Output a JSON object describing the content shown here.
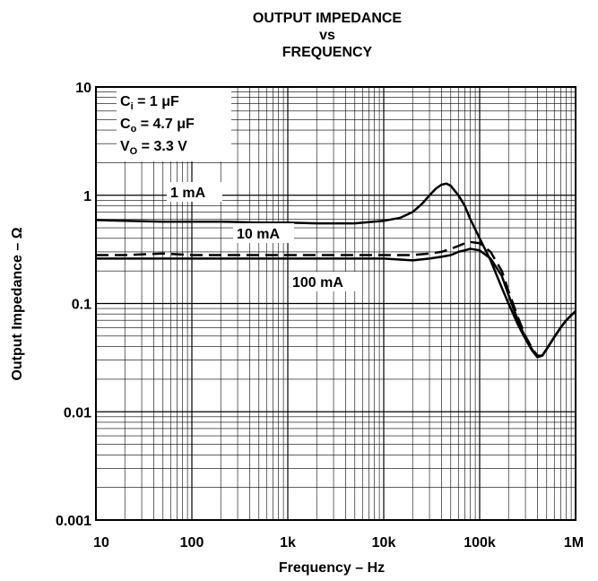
{
  "chart_data": {
    "type": "line",
    "title_lines": [
      "OUTPUT IMPEDANCE",
      "vs",
      "FREQUENCY"
    ],
    "xlabel": "Frequency – Hz",
    "ylabel": "Output Impedance – Ω",
    "x_scale": "log",
    "y_scale": "log",
    "xlim": [
      10,
      1000000
    ],
    "ylim": [
      0.001,
      10
    ],
    "x_ticks": [
      {
        "value": 10,
        "label": "10"
      },
      {
        "value": 100,
        "label": "100"
      },
      {
        "value": 1000,
        "label": "1k"
      },
      {
        "value": 10000,
        "label": "10k"
      },
      {
        "value": 100000,
        "label": "100k"
      },
      {
        "value": 1000000,
        "label": "1M"
      }
    ],
    "y_ticks": [
      {
        "value": 10,
        "label": "10"
      },
      {
        "value": 1,
        "label": "1"
      },
      {
        "value": 0.1,
        "label": "0.1"
      },
      {
        "value": 0.01,
        "label": "0.01"
      },
      {
        "value": 0.001,
        "label": "0.001"
      }
    ],
    "grid": true,
    "conditions": [
      {
        "main": "C",
        "sub": "i",
        "rest": " = 1 μF"
      },
      {
        "main": "C",
        "sub": "o",
        "rest": " = 4.7 μF"
      },
      {
        "main": "V",
        "sub": "O",
        "rest": " = 3.3 V"
      }
    ],
    "series": [
      {
        "name": "1 mA",
        "style": "solid",
        "x": [
          10,
          20,
          50,
          100,
          200,
          500,
          1000,
          2000,
          5000,
          10000,
          15000,
          20000,
          25000,
          30000,
          35000,
          40000,
          45000,
          50000,
          60000,
          70000,
          80000,
          100000,
          130000,
          170000,
          200000,
          250000,
          300000,
          350000,
          400000,
          450000,
          500000,
          600000,
          700000,
          800000,
          1000000
        ],
        "y": [
          0.59,
          0.58,
          0.57,
          0.57,
          0.57,
          0.56,
          0.56,
          0.55,
          0.55,
          0.58,
          0.62,
          0.7,
          0.83,
          1.0,
          1.15,
          1.25,
          1.28,
          1.22,
          1.0,
          0.8,
          0.6,
          0.4,
          0.25,
          0.14,
          0.1,
          0.064,
          0.047,
          0.037,
          0.032,
          0.033,
          0.038,
          0.049,
          0.06,
          0.07,
          0.085
        ]
      },
      {
        "name": "10 mA",
        "style": "dashed",
        "x": [
          10,
          20,
          50,
          100,
          200,
          500,
          1000,
          2000,
          5000,
          10000,
          20000,
          30000,
          40000,
          50000,
          60000,
          70000,
          80000,
          100000,
          130000,
          170000,
          200000,
          250000,
          300000,
          350000,
          400000,
          450000,
          500000,
          600000,
          700000,
          800000,
          1000000
        ],
        "y": [
          0.28,
          0.28,
          0.29,
          0.28,
          0.28,
          0.28,
          0.28,
          0.28,
          0.28,
          0.28,
          0.28,
          0.29,
          0.3,
          0.32,
          0.34,
          0.36,
          0.37,
          0.36,
          0.3,
          0.2,
          0.13,
          0.075,
          0.05,
          0.039,
          0.033,
          0.033,
          0.038,
          0.049,
          0.06,
          0.07,
          0.085
        ]
      },
      {
        "name": "100 mA",
        "style": "solid",
        "x": [
          10,
          20,
          50,
          100,
          200,
          500,
          1000,
          2000,
          5000,
          10000,
          20000,
          30000,
          40000,
          50000,
          60000,
          70000,
          80000,
          100000,
          130000,
          170000,
          200000,
          250000,
          300000,
          350000,
          400000,
          450000,
          500000,
          600000,
          700000,
          800000,
          1000000
        ],
        "y": [
          0.26,
          0.26,
          0.26,
          0.26,
          0.26,
          0.26,
          0.26,
          0.26,
          0.26,
          0.26,
          0.25,
          0.26,
          0.27,
          0.28,
          0.3,
          0.31,
          0.32,
          0.31,
          0.26,
          0.18,
          0.12,
          0.07,
          0.048,
          0.038,
          0.032,
          0.033,
          0.038,
          0.049,
          0.06,
          0.07,
          0.085
        ]
      }
    ]
  }
}
